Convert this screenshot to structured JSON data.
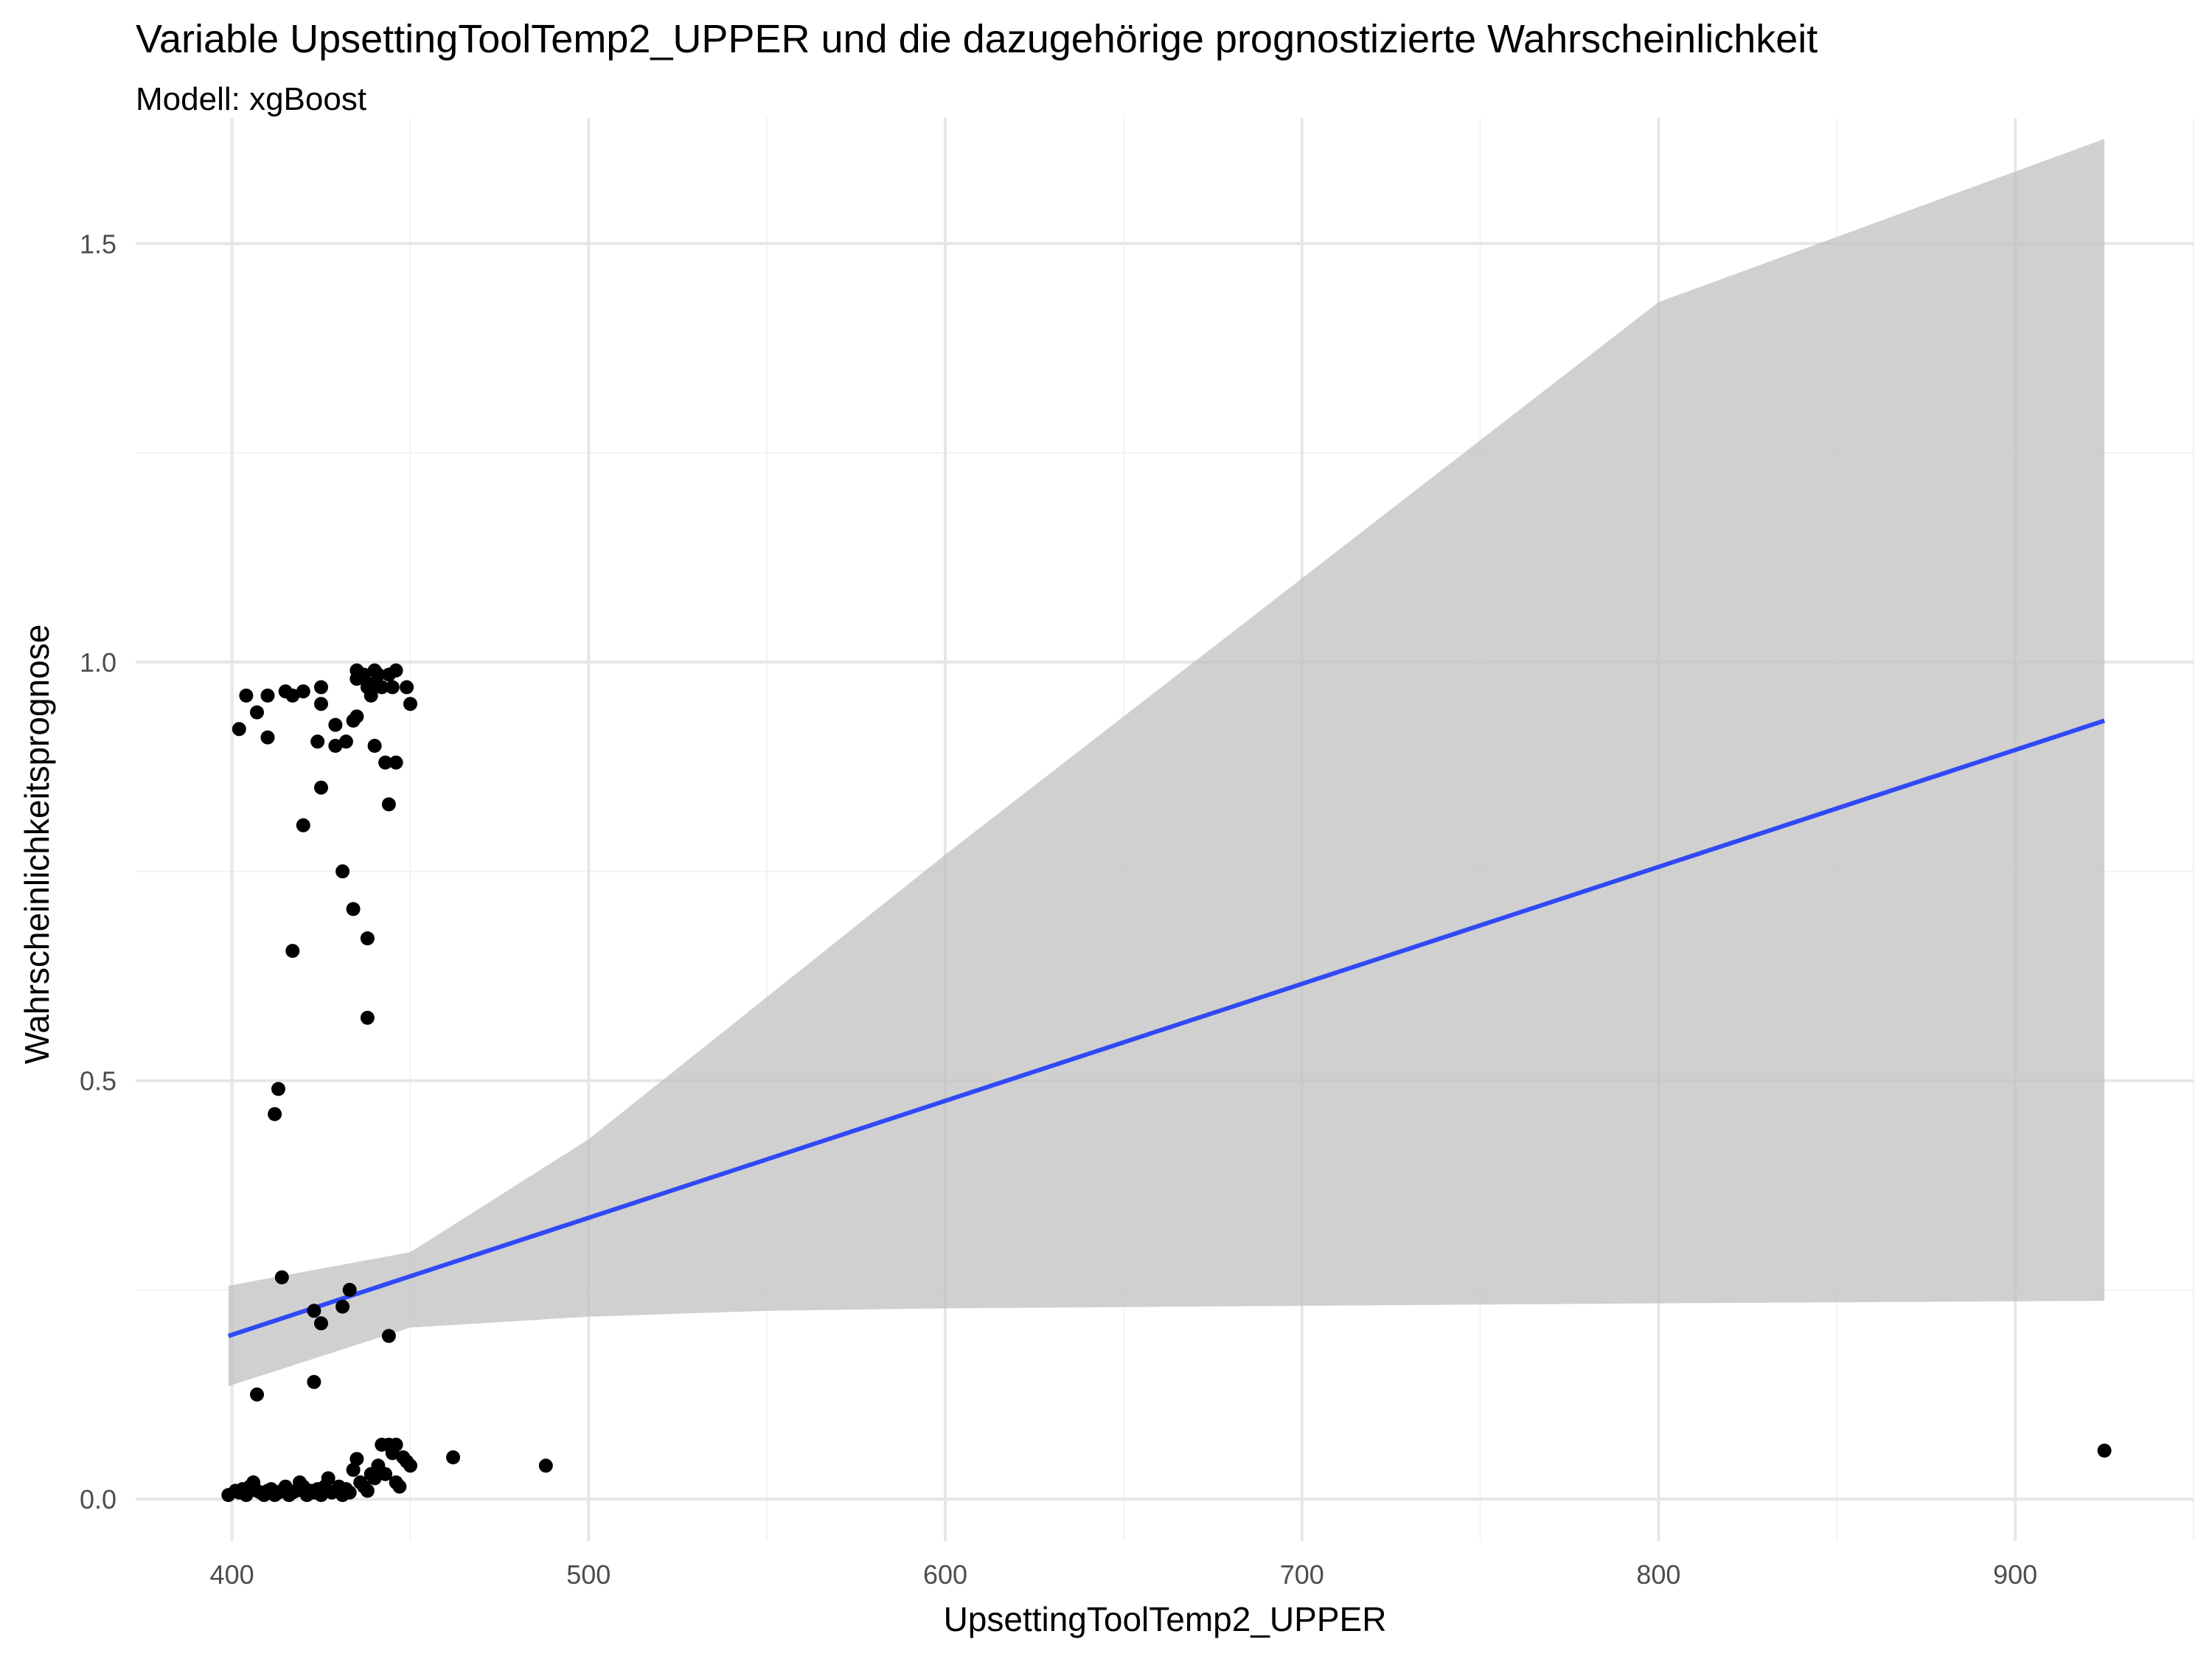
{
  "chart_data": {
    "type": "scatter",
    "title": "Variable UpsettingToolTemp2_UPPER und die dazugehörige prognostizierte Wahrscheinlichkeit",
    "subtitle": "Modell: xgBoost",
    "xlabel": "UpsettingToolTemp2_UPPER",
    "ylabel": "Wahrscheinlichkeitsprognose",
    "xlim": [
      373,
      950
    ],
    "ylim": [
      -0.05,
      1.65
    ],
    "x_ticks": [
      400,
      500,
      600,
      700,
      800,
      900
    ],
    "x_tick_labels": [
      "400",
      "500",
      "600",
      "700",
      "800",
      "900"
    ],
    "y_ticks": [
      0.0,
      0.5,
      1.0,
      1.5
    ],
    "y_tick_labels": [
      "0.0",
      "0.5",
      "1.0",
      "1.5"
    ],
    "grid": true,
    "colors": {
      "points": "#000000",
      "fit_line": "#3049F5",
      "confidence_band": "#BEBEBE",
      "grid_major": "#E6E6E6",
      "grid_minor": "#F2F2F2"
    },
    "series": [
      {
        "kind": "points",
        "points": [
          [
            402,
            0.92
          ],
          [
            404,
            0.96
          ],
          [
            407,
            0.94
          ],
          [
            410,
            0.91
          ],
          [
            410,
            0.96
          ],
          [
            415,
            0.965
          ],
          [
            417,
            0.96
          ],
          [
            420,
            0.965
          ],
          [
            424,
            0.905
          ],
          [
            425,
            0.97
          ],
          [
            425,
            0.95
          ],
          [
            425,
            0.85
          ],
          [
            429,
            0.925
          ],
          [
            429,
            0.9
          ],
          [
            432,
            0.905
          ],
          [
            434,
            0.93
          ],
          [
            435,
            0.935
          ],
          [
            435,
            0.98
          ],
          [
            435,
            0.99
          ],
          [
            437,
            0.985
          ],
          [
            438,
            0.97
          ],
          [
            439,
            0.96
          ],
          [
            440,
            0.975
          ],
          [
            440,
            0.99
          ],
          [
            440,
            0.9
          ],
          [
            441,
            0.985
          ],
          [
            442,
            0.97
          ],
          [
            443,
            0.88
          ],
          [
            444,
            0.985
          ],
          [
            445,
            0.97
          ],
          [
            446,
            0.99
          ],
          [
            446,
            0.88
          ],
          [
            449,
            0.97
          ],
          [
            450,
            0.95
          ],
          [
            444,
            0.83
          ],
          [
            420,
            0.805
          ],
          [
            431,
            0.75
          ],
          [
            434,
            0.705
          ],
          [
            438,
            0.67
          ],
          [
            417,
            0.655
          ],
          [
            438,
            0.575
          ],
          [
            413,
            0.49
          ],
          [
            412,
            0.46
          ],
          [
            414,
            0.265
          ],
          [
            433,
            0.25
          ],
          [
            423,
            0.225
          ],
          [
            431,
            0.23
          ],
          [
            425,
            0.21
          ],
          [
            444,
            0.195
          ],
          [
            423,
            0.14
          ],
          [
            407,
            0.125
          ],
          [
            399,
            0.005
          ],
          [
            401,
            0.01
          ],
          [
            402,
            0.008
          ],
          [
            403,
            0.012
          ],
          [
            404,
            0.005
          ],
          [
            405,
            0.015
          ],
          [
            406,
            0.02
          ],
          [
            407,
            0.01
          ],
          [
            408,
            0.008
          ],
          [
            409,
            0.005
          ],
          [
            410,
            0.01
          ],
          [
            411,
            0.012
          ],
          [
            412,
            0.005
          ],
          [
            413,
            0.008
          ],
          [
            414,
            0.01
          ],
          [
            415,
            0.015
          ],
          [
            416,
            0.005
          ],
          [
            417,
            0.008
          ],
          [
            418,
            0.01
          ],
          [
            419,
            0.02
          ],
          [
            420,
            0.015
          ],
          [
            421,
            0.005
          ],
          [
            422,
            0.01
          ],
          [
            423,
            0.008
          ],
          [
            424,
            0.012
          ],
          [
            425,
            0.005
          ],
          [
            426,
            0.015
          ],
          [
            427,
            0.025
          ],
          [
            428,
            0.008
          ],
          [
            429,
            0.01
          ],
          [
            430,
            0.015
          ],
          [
            431,
            0.005
          ],
          [
            432,
            0.012
          ],
          [
            433,
            0.008
          ],
          [
            434,
            0.035
          ],
          [
            435,
            0.048
          ],
          [
            436,
            0.02
          ],
          [
            437,
            0.015
          ],
          [
            438,
            0.01
          ],
          [
            439,
            0.03
          ],
          [
            440,
            0.025
          ],
          [
            441,
            0.04
          ],
          [
            442,
            0.065
          ],
          [
            443,
            0.03
          ],
          [
            444,
            0.065
          ],
          [
            445,
            0.055
          ],
          [
            446,
            0.065
          ],
          [
            446,
            0.02
          ],
          [
            447,
            0.015
          ],
          [
            448,
            0.05
          ],
          [
            449,
            0.045
          ],
          [
            450,
            0.04
          ],
          [
            462,
            0.05
          ],
          [
            488,
            0.04
          ],
          [
            925,
            0.058
          ]
        ]
      },
      {
        "kind": "fit_line",
        "x": [
          399,
          925
        ],
        "y": [
          0.195,
          0.93
        ]
      },
      {
        "kind": "confidence_band",
        "x": [
          399,
          450,
          500,
          550,
          600,
          700,
          800,
          925
        ],
        "upper": [
          0.255,
          0.295,
          0.43,
          0.6,
          0.77,
          1.1,
          1.43,
          1.625
        ],
        "lower": [
          0.135,
          0.205,
          0.218,
          0.225,
          0.228,
          0.231,
          0.234,
          0.237
        ]
      }
    ]
  }
}
